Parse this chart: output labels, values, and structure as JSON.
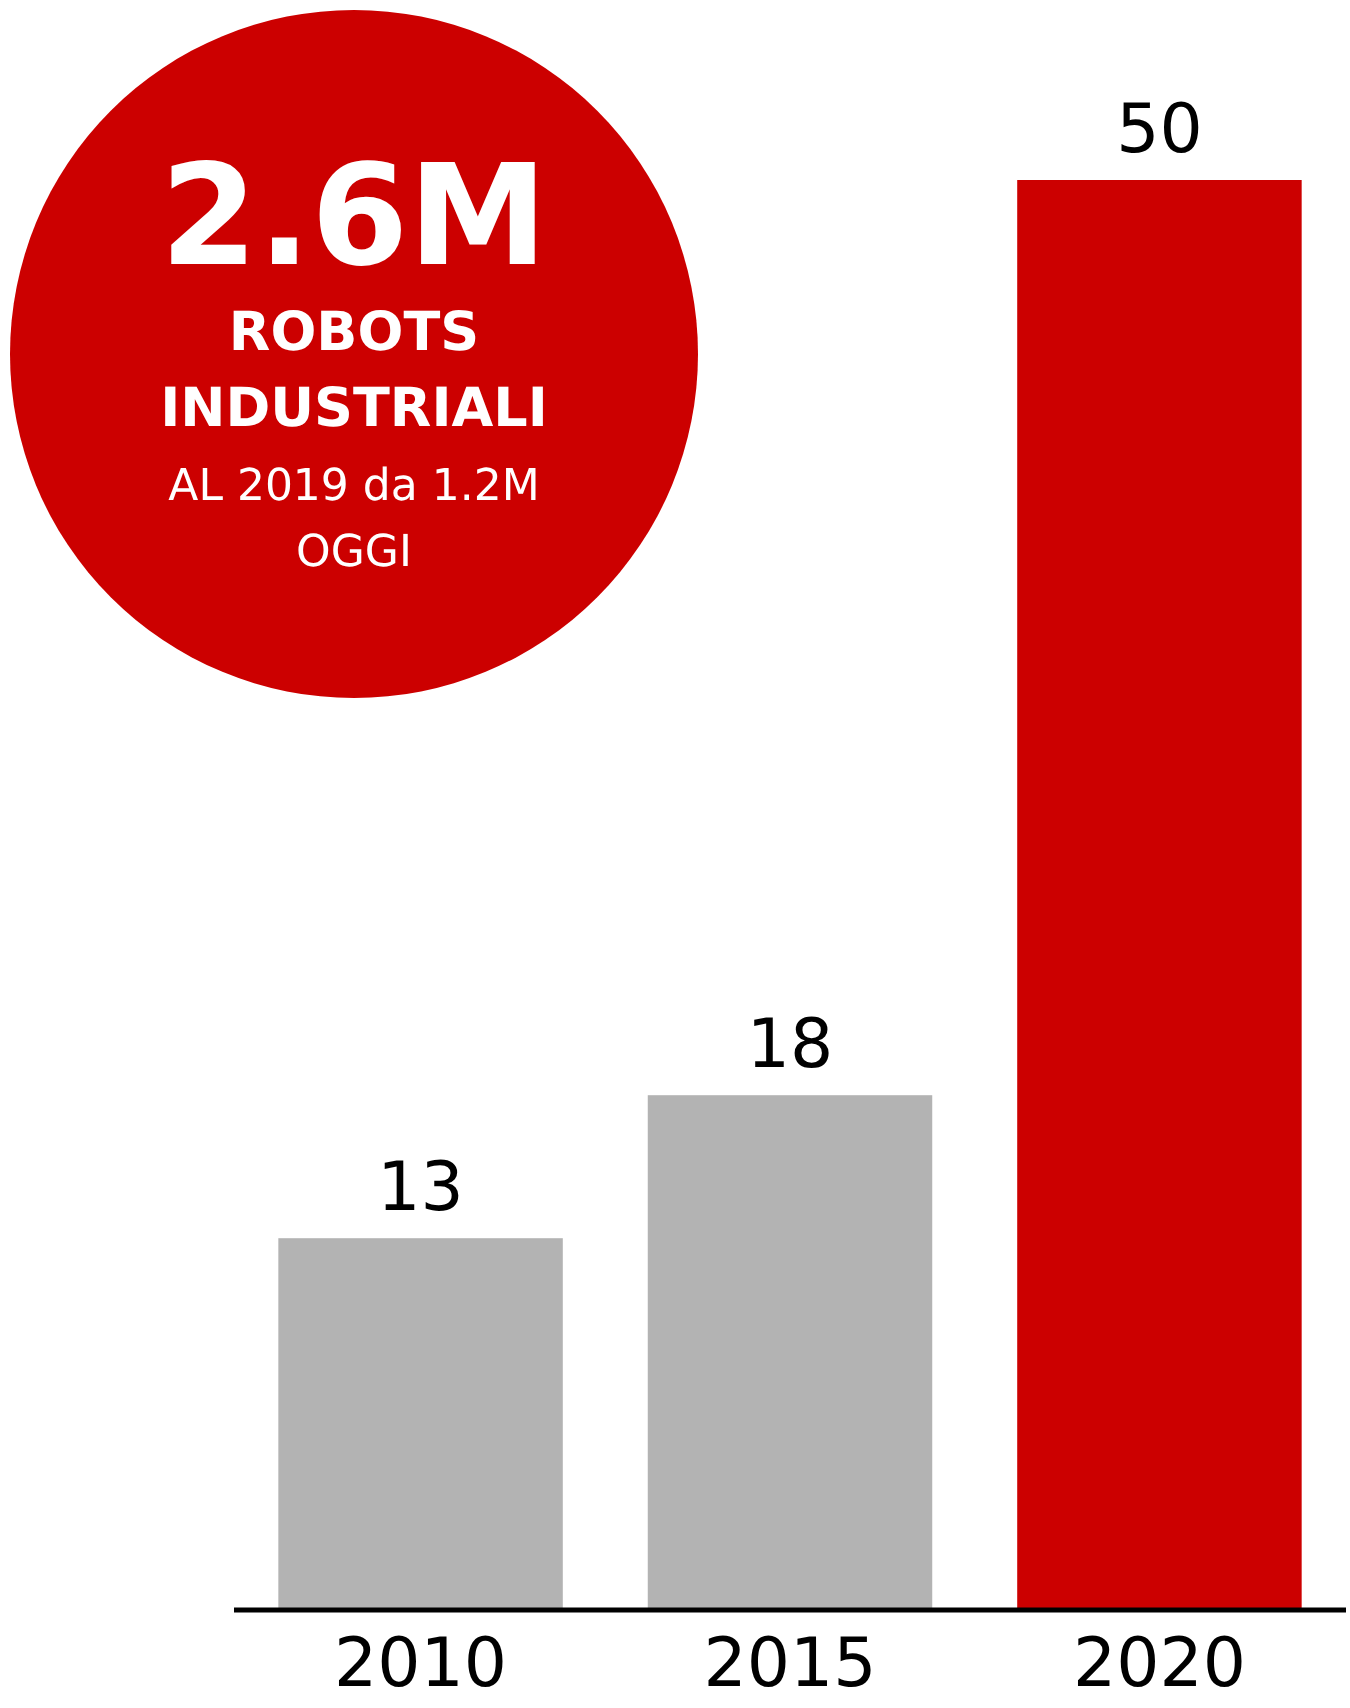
{
  "chart_data": {
    "type": "bar",
    "categories": [
      "2010",
      "2015",
      "2020"
    ],
    "values": [
      13,
      18,
      50
    ],
    "colors": [
      "#b3b3b3",
      "#b3b3b3",
      "#cc0000"
    ],
    "data_labels": true,
    "grid": false,
    "tick_labels": "x",
    "annotations": [
      "2.6M",
      "ROBOTS",
      "INDUSTRIALI",
      "AL 2019 da 1.2M",
      "OGGI"
    ]
  }
}
